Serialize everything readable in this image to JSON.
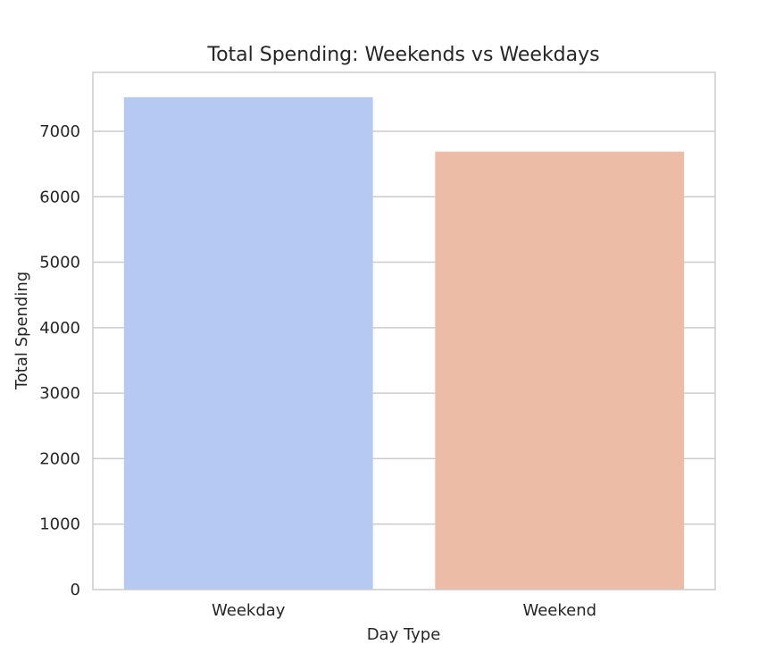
{
  "chart_data": {
    "type": "bar",
    "title": "Total Spending: Weekends vs Weekdays",
    "xlabel": "Day Type",
    "ylabel": "Total Spending",
    "categories": [
      "Weekday",
      "Weekend"
    ],
    "values": [
      7520,
      6690
    ],
    "colors": [
      "#b5c9f3",
      "#ecbca6"
    ],
    "ylim": [
      0,
      7900
    ],
    "yticks": [
      0,
      1000,
      2000,
      3000,
      4000,
      5000,
      6000,
      7000
    ],
    "grid": true
  }
}
